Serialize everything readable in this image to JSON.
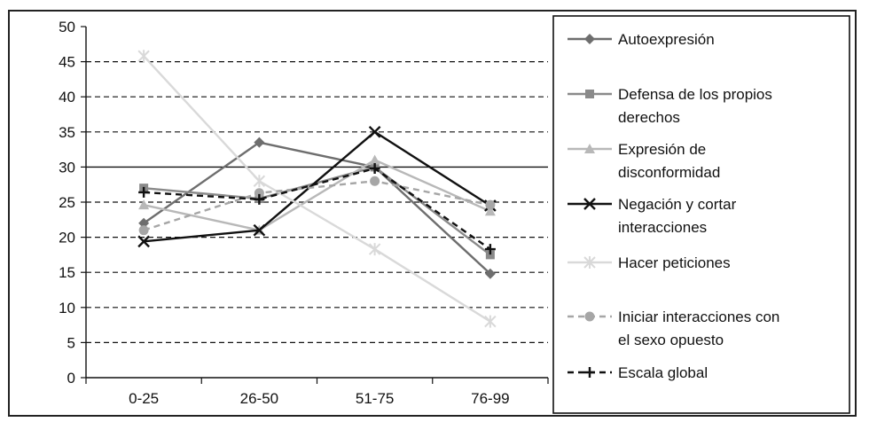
{
  "chart_data": {
    "type": "line",
    "categories": [
      "0-25",
      "26-50",
      "51-75",
      "76-99"
    ],
    "ylim": [
      0,
      50
    ],
    "yticks": [
      0,
      5,
      10,
      15,
      20,
      25,
      30,
      35,
      40,
      45,
      50
    ],
    "grid": "horizontal dashed",
    "legend_position": "right",
    "series": [
      {
        "name": "Autoexpresión",
        "values": [
          22,
          33.5,
          30,
          14.8
        ],
        "color": "#6e6e6e",
        "marker": "diamond",
        "dash": "solid"
      },
      {
        "name": "Defensa de los propios derechos",
        "values": [
          27,
          25.5,
          30,
          17.5
        ],
        "color": "#8a8a8a",
        "marker": "square",
        "dash": "solid"
      },
      {
        "name": "Expresión de disconformidad",
        "values": [
          24.6,
          21,
          31,
          23.7
        ],
        "color": "#b8b8b8",
        "marker": "triangle",
        "dash": "solid"
      },
      {
        "name": "Negación y cortar interacciones",
        "values": [
          19.4,
          21,
          35,
          24.5
        ],
        "color": "#111111",
        "marker": "x",
        "dash": "solid"
      },
      {
        "name": "Hacer peticiones",
        "values": [
          45.8,
          28,
          18.3,
          8
        ],
        "color": "#d9d9d9",
        "marker": "star",
        "dash": "solid"
      },
      {
        "name": "Iniciar interacciones con el sexo opuesto",
        "values": [
          21,
          26.3,
          28,
          24.6
        ],
        "color": "#a6a6a6",
        "marker": "circle",
        "dash": "dashed"
      },
      {
        "name": "Escala global",
        "values": [
          26.4,
          25.4,
          29.8,
          18.3
        ],
        "color": "#111111",
        "marker": "plus",
        "dash": "dashed"
      }
    ],
    "legend_lines": [
      [
        "Autoexpresión"
      ],
      [
        "Defensa de los propios",
        "derechos"
      ],
      [
        "Expresión de",
        "disconformidad"
      ],
      [
        "Negación y cortar",
        "interacciones"
      ],
      [
        "Hacer peticiones"
      ],
      [
        "Iniciar interacciones con",
        "el sexo opuesto"
      ],
      [
        "Escala global"
      ]
    ]
  }
}
